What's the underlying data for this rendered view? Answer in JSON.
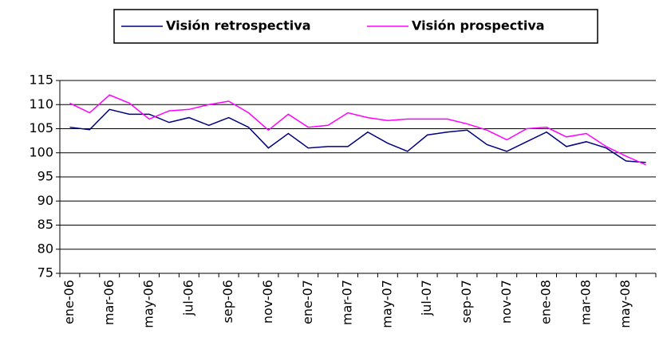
{
  "chart_data": {
    "type": "line",
    "categories": [
      "ene-06",
      null,
      "mar-06",
      null,
      "may-06",
      null,
      "jul-06",
      null,
      "sep-06",
      null,
      "nov-06",
      null,
      "ene-07",
      null,
      "mar-07",
      null,
      "may-07",
      null,
      "jul-07",
      null,
      "sep-07",
      null,
      "nov-07",
      null,
      "ene-08",
      null,
      "mar-08",
      null,
      "may-08",
      null
    ],
    "series": [
      {
        "name": "Visión retrospectiva",
        "color": "#000080",
        "values": [
          105.3,
          104.8,
          109,
          108,
          108,
          106.3,
          107.3,
          105.7,
          107.3,
          105.3,
          101,
          104,
          101,
          101.3,
          101.3,
          104.3,
          102,
          100.3,
          103.7,
          104.3,
          104.7,
          101.7,
          100.3,
          102.3,
          104.3,
          101.3,
          102.3,
          101,
          98.3,
          98
        ]
      },
      {
        "name": "Visión prospectiva",
        "color": "#ff00ff",
        "values": [
          110.3,
          108.3,
          112,
          110.3,
          107,
          108.7,
          109,
          110,
          110.7,
          108.3,
          104.7,
          108,
          105.3,
          105.7,
          108.3,
          107.3,
          106.7,
          107,
          107,
          107,
          106,
          104.7,
          102.7,
          105,
          105.3,
          103.3,
          104,
          101.3,
          99.3,
          97.5
        ]
      }
    ],
    "ylim": [
      75,
      115
    ],
    "yticks": [
      75,
      80,
      85,
      90,
      95,
      100,
      105,
      110,
      115
    ],
    "grid": true,
    "legend": "top"
  }
}
